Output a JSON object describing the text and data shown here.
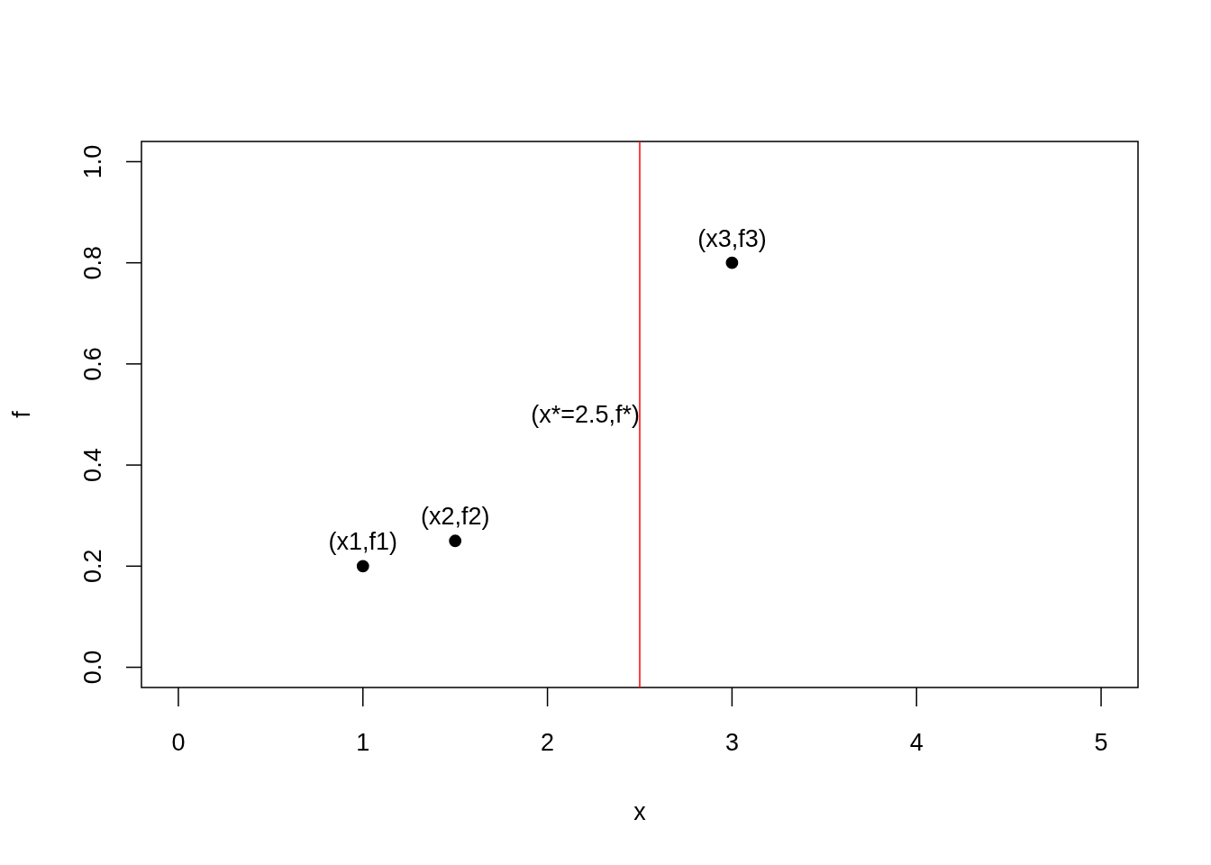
{
  "chart_data": {
    "type": "scatter",
    "xlabel": "x",
    "ylabel": "f",
    "x": [
      1,
      1.5,
      3
    ],
    "series": [
      {
        "color": "#000000",
        "values": [
          0.2,
          0.25,
          0.8
        ]
      }
    ],
    "marker": "circle",
    "xlim": [
      -0.2,
      5.2
    ],
    "ylim": [
      -0.04,
      1.04
    ],
    "xticks": [
      0,
      1,
      2,
      3,
      4,
      5
    ],
    "yticks": [
      {
        "value": 0,
        "label": "0.0"
      },
      {
        "value": 0.2,
        "label": "0.2"
      },
      {
        "value": 0.4,
        "label": "0.4"
      },
      {
        "value": 0.6,
        "label": "0.6"
      },
      {
        "value": 0.8,
        "label": "0.8"
      },
      {
        "value": 1,
        "label": "1.0"
      }
    ],
    "ref_lines": [
      {
        "axis": "x",
        "value": 2.5,
        "label": "(x*=2.5,f*)",
        "color": "#ff0000"
      }
    ],
    "annotations": [
      {
        "text": "(x1,f1)",
        "x": 1,
        "y": 0.2
      },
      {
        "text": "(x2,f2)",
        "x": 1.5,
        "y": 0.25
      },
      {
        "text": "(x3,f3)",
        "x": 3,
        "y": 0.8
      }
    ],
    "grid": false
  }
}
